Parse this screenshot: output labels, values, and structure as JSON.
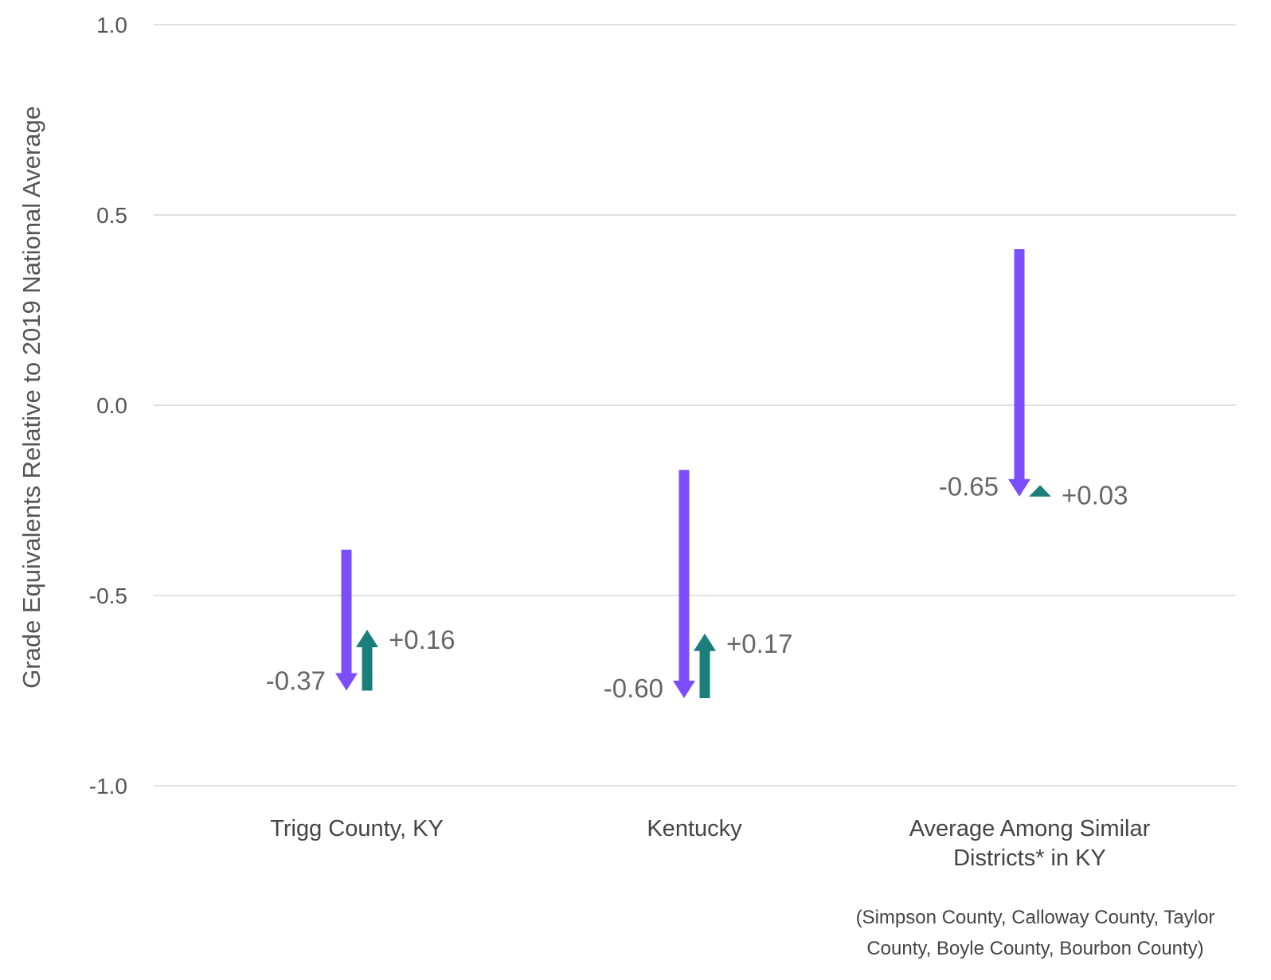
{
  "chart_data": {
    "type": "arrow-change",
    "ylabel": "Grade Equivalents Relative to 2019 National Average",
    "ylim": [
      -1.0,
      1.0
    ],
    "yticks": [
      1.0,
      0.5,
      0.0,
      -0.5,
      -1.0
    ],
    "ytick_labels": [
      "1.0",
      "0.5",
      "0.0",
      "-0.5",
      "-1.0"
    ],
    "grid": true,
    "categories": [
      {
        "label_lines": [
          "Trigg County, KY"
        ]
      },
      {
        "label_lines": [
          "Kentucky"
        ]
      },
      {
        "label_lines": [
          "Average Among Similar",
          "Districts* in KY"
        ]
      }
    ],
    "series": [
      {
        "role": "decline",
        "color": "#7c4dff",
        "points": [
          {
            "start": -0.38,
            "end": -0.75,
            "change": -0.37,
            "label": "-0.37"
          },
          {
            "start": -0.17,
            "end": -0.77,
            "change": -0.6,
            "label": "-0.60"
          },
          {
            "start": 0.41,
            "end": -0.24,
            "change": -0.65,
            "label": "-0.65"
          }
        ]
      },
      {
        "role": "recovery",
        "color": "#1a7f7a",
        "points": [
          {
            "start": -0.75,
            "end": -0.59,
            "change": 0.16,
            "label": "+0.16"
          },
          {
            "start": -0.77,
            "end": -0.6,
            "change": 0.17,
            "label": "+0.17"
          },
          {
            "start": -0.24,
            "end": -0.21,
            "change": 0.03,
            "label": "+0.03"
          }
        ]
      }
    ],
    "footnote_lines": [
      "(Simpson County, Calloway County, Taylor",
      "County, Boyle County, Bourbon County)"
    ],
    "label_color": "#666666"
  }
}
